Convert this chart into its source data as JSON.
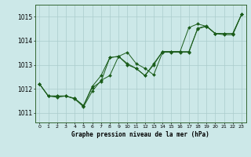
{
  "title": "Graphe pression niveau de la mer (hPa)",
  "bg_color": "#cce8e8",
  "grid_color": "#aacccc",
  "line_color": "#1a5c1a",
  "x_ticks": [
    0,
    1,
    2,
    3,
    4,
    5,
    6,
    7,
    8,
    9,
    10,
    11,
    12,
    13,
    14,
    15,
    16,
    17,
    18,
    19,
    20,
    21,
    22,
    23
  ],
  "ylim": [
    1010.6,
    1015.5
  ],
  "yticks": [
    1011,
    1012,
    1013,
    1014,
    1015
  ],
  "series1": [
    1012.2,
    1011.7,
    1011.7,
    1011.7,
    1011.6,
    1011.3,
    1012.05,
    1012.3,
    1013.3,
    1013.35,
    1013.0,
    1012.85,
    1012.55,
    1013.0,
    1013.55,
    1013.55,
    1013.55,
    1013.55,
    1014.5,
    1014.6,
    1014.3,
    1014.3,
    1014.3,
    1015.1
  ],
  "series2": [
    1012.2,
    1011.7,
    1011.7,
    1011.7,
    1011.6,
    1011.3,
    1012.1,
    1012.55,
    1013.3,
    1013.35,
    1013.05,
    1012.85,
    1012.55,
    1013.05,
    1013.55,
    1013.55,
    1013.55,
    1014.55,
    1014.7,
    1014.6,
    1014.3,
    1014.3,
    1014.3,
    1015.1
  ],
  "series3": [
    1012.2,
    1011.7,
    1011.65,
    1011.7,
    1011.58,
    1011.25,
    1011.9,
    1012.35,
    1012.55,
    1013.35,
    1013.52,
    1013.05,
    1012.85,
    1012.58,
    1013.52,
    1013.52,
    1013.52,
    1013.52,
    1014.52,
    1014.62,
    1014.3,
    1014.25,
    1014.25,
    1015.1
  ]
}
